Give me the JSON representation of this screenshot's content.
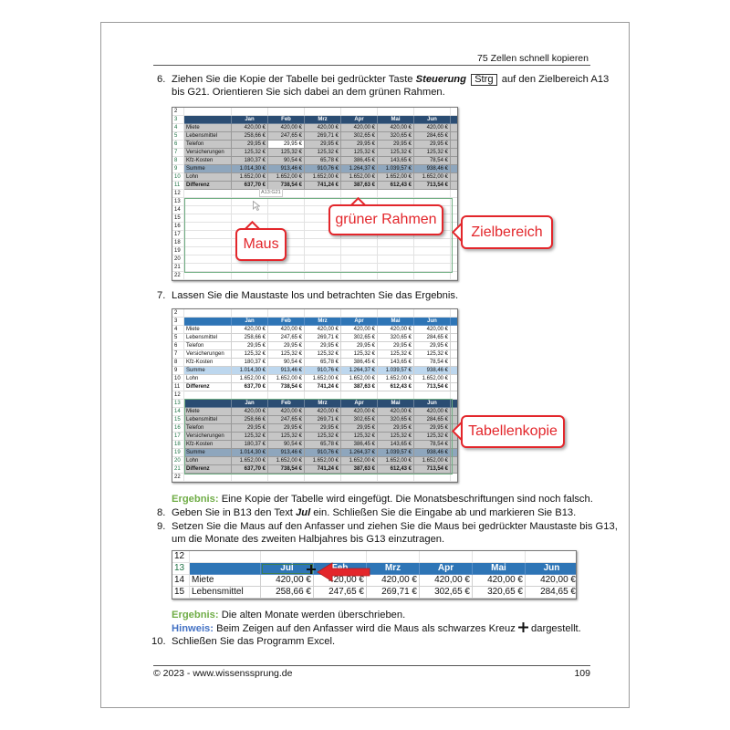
{
  "header": {
    "chapter": "75 Zellen schnell kopieren"
  },
  "step6": {
    "num": "6.",
    "pre": "Ziehen Sie die Kopie der Tabelle bei gedrückter Taste ",
    "bold": "Steuerung",
    "key": "Strg",
    "post": " auf den Zielbereich A13",
    "line2": "bis G21. Orientieren Sie sich dabei an dem grünen Rahmen."
  },
  "step7": {
    "num": "7.",
    "text": "Lassen Sie die Maustaste los und betrachten Sie das Ergebnis."
  },
  "result1": {
    "label": "Ergebnis:",
    "text": " Eine Kopie der Tabelle wird eingefügt. Die Monatsbeschriftungen sind noch falsch."
  },
  "step8": {
    "num": "8.",
    "pre": "Geben Sie in B13 den Text ",
    "bold": "Jul",
    "post": " ein. Schließen Sie die Eingabe ab und markieren Sie B13."
  },
  "step9": {
    "num": "9.",
    "line1": "Setzen Sie die Maus auf den Anfasser und ziehen Sie die Maus bei gedrückter Maustaste bis G13,",
    "line2": "um die Monate des zweiten Halbjahres bis G13 einzutragen."
  },
  "result2": {
    "label": "Ergebnis:",
    "text": " Die alten Monate werden überschrieben."
  },
  "hint": {
    "label": "Hinweis:",
    "text": " Beim Zeigen auf den Anfasser wird die Maus als schwarzes Kreuz ",
    "icon": "plus-cross-icon",
    "post": " dargestellt."
  },
  "step10": {
    "num": "10.",
    "text": "Schließen Sie das Programm Excel."
  },
  "footer": {
    "copyright": "© 2023 - www.wissenssprung.de",
    "page": "109"
  },
  "sheet": {
    "months": [
      "Jan",
      "Feb",
      "Mrz",
      "Apr",
      "Mai",
      "Jun"
    ],
    "rows": [
      {
        "label": "Miete",
        "values": [
          "420,00 €",
          "420,00 €",
          "420,00 €",
          "420,00 €",
          "420,00 €",
          "420,00 €"
        ]
      },
      {
        "label": "Lebensmittel",
        "values": [
          "258,66 €",
          "247,65 €",
          "269,71 €",
          "302,65 €",
          "320,65 €",
          "284,65 €"
        ]
      },
      {
        "label": "Telefon",
        "values": [
          "29,95 €",
          "29,95 €",
          "29,95 €",
          "29,95 €",
          "29,95 €",
          "29,95 €"
        ]
      },
      {
        "label": "Versicherungen",
        "values": [
          "125,32 €",
          "125,32 €",
          "125,32 €",
          "125,32 €",
          "125,32 €",
          "125,32 €"
        ]
      },
      {
        "label": "Kfz-Kosten",
        "values": [
          "180,37 €",
          "90,54 €",
          "65,78 €",
          "386,45 €",
          "143,65 €",
          "78,54 €"
        ]
      },
      {
        "label": "Summe",
        "kind": "sum",
        "values": [
          "1.014,30 €",
          "913,46 €",
          "910,76 €",
          "1.264,37 €",
          "1.039,57 €",
          "938,46 €"
        ]
      },
      {
        "label": "Lohn",
        "values": [
          "1.652,00 €",
          "1.652,00 €",
          "1.652,00 €",
          "1.652,00 €",
          "1.652,00 €",
          "1.652,00 €"
        ]
      },
      {
        "label": "Differenz",
        "kind": "bold",
        "values": [
          "637,70 €",
          "738,54 €",
          "741,24 €",
          "387,63 €",
          "612,43 €",
          "713,54 €"
        ]
      }
    ],
    "range_tooltip": "A13:G21",
    "fig3_months": [
      "Jul",
      "Feb",
      "Mrz",
      "Apr",
      "Mai",
      "Jun"
    ]
  },
  "callouts": {
    "frame": "grüner Rahmen",
    "mouse": "Maus",
    "target": "Zielbereich",
    "copy": "Tabellenkopie"
  },
  "colors": {
    "header_blue": "#2e75b6",
    "header_selected": "#2b4d73",
    "sum_light": "#bdd7ee",
    "sum_selected": "#8ea6bd",
    "selected_gray": "#c6c6c6",
    "callout_red": "#e3262b",
    "frame_green": "#6fae82",
    "ergebnis_green": "#70ad47",
    "hinweis_blue": "#4472c4"
  }
}
